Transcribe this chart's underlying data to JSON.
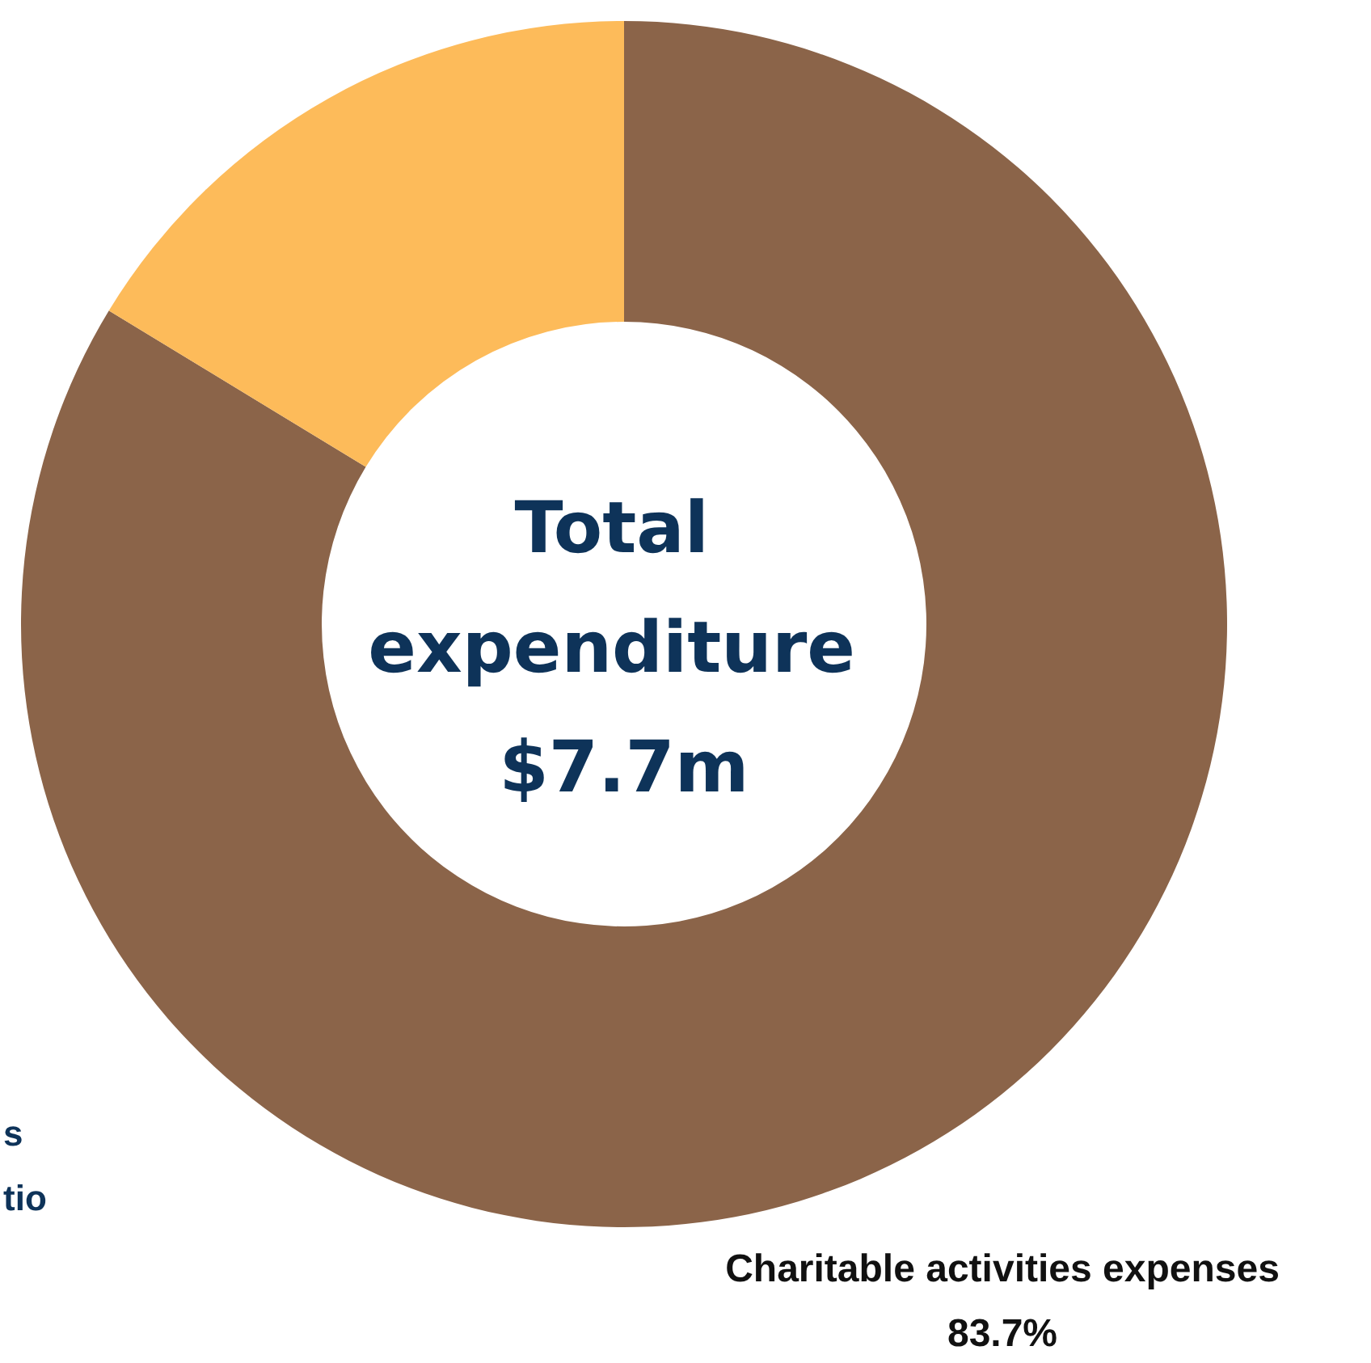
{
  "chart_data": {
    "type": "donut",
    "title": "Total expenditure $7.7m",
    "categories": [
      "Charitable activities expenses",
      null
    ],
    "values": [
      83.7,
      16.3
    ],
    "value_labels": [
      "83.7%",
      null
    ],
    "colors": [
      "#8b6449",
      "#fdbb5a"
    ],
    "annotations": [
      "s",
      "tio"
    ],
    "legend": false
  }
}
